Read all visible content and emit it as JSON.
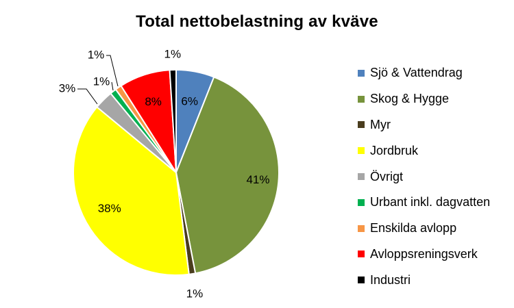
{
  "chart_data": {
    "type": "pie",
    "title": "Total nettobelastning av kväve",
    "categories": [
      "Sjö & Vattendrag",
      "Skog & Hygge",
      "Myr",
      "Jordbruk",
      "Övrigt",
      "Urbant inkl. dagvatten",
      "Enskilda avlopp",
      "Avloppsreningsverk",
      "Industri"
    ],
    "values": [
      6,
      41,
      1,
      38,
      3,
      1,
      1,
      8,
      1
    ],
    "labels": [
      "6%",
      "41%",
      "1%",
      "38%",
      "3%",
      "1%",
      "1%",
      "8%",
      "1%"
    ],
    "colors": [
      "#4F81BD",
      "#77933C",
      "#4A3D1E",
      "#FFFF00",
      "#A6A6A6",
      "#00B050",
      "#F79646",
      "#FF0000",
      "#000000"
    ],
    "legend_position": "right"
  }
}
